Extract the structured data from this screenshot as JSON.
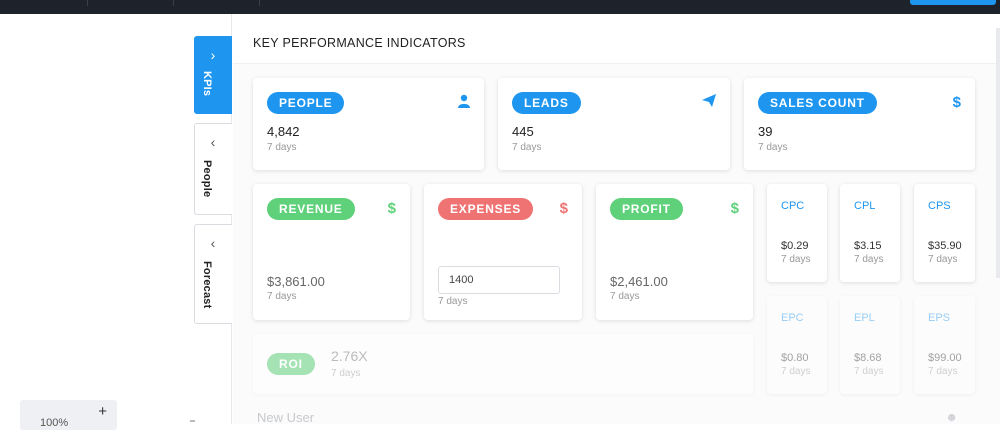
{
  "colors": {
    "accent": "#1e96f0",
    "green": "#5fd17a",
    "red": "#f07373",
    "dark": "#1d222b"
  },
  "sidebar_tabs": [
    {
      "label": "KPIs",
      "icon": "chevron-right-icon",
      "active": true
    },
    {
      "label": "People",
      "icon": "chevron-left-icon",
      "active": false
    },
    {
      "label": "Forecast",
      "icon": "chevron-left-icon",
      "active": false
    }
  ],
  "zoom": {
    "value": "100%",
    "plus": "+"
  },
  "main": {
    "title": "KEY PERFORMANCE INDICATORS"
  },
  "kpis": {
    "people": {
      "label": "PEOPLE",
      "value": "4,842",
      "period": "7 days",
      "icon": "user-icon"
    },
    "leads": {
      "label": "LEADS",
      "value": "445",
      "period": "7 days",
      "icon": "paper-plane-icon"
    },
    "sales": {
      "label": "SALES COUNT",
      "value": "39",
      "period": "7 days",
      "icon": "dollar-icon"
    },
    "revenue": {
      "label": "REVENUE",
      "value": "$3,861.00",
      "period": "7 days",
      "icon": "dollar-icon"
    },
    "expenses": {
      "label": "EXPENSES",
      "input_value": "1400",
      "period": "7 days",
      "icon": "dollar-icon"
    },
    "profit": {
      "label": "PROFIT",
      "value": "$2,461.00",
      "period": "7 days",
      "icon": "dollar-icon"
    },
    "roi": {
      "label": "ROI",
      "value": "2.76X",
      "period": "7 days"
    }
  },
  "mini": [
    {
      "label": "CPC",
      "value": "$0.29",
      "period": "7 days"
    },
    {
      "label": "CPL",
      "value": "$3.15",
      "period": "7 days"
    },
    {
      "label": "CPS",
      "value": "$35.90",
      "period": "7 days"
    },
    {
      "label": "EPC",
      "value": "$0.80",
      "period": "7 days"
    },
    {
      "label": "EPL",
      "value": "$8.68",
      "period": "7 days"
    },
    {
      "label": "EPS",
      "value": "$99.00",
      "period": "7 days"
    }
  ],
  "new_user": {
    "label": "New User"
  }
}
